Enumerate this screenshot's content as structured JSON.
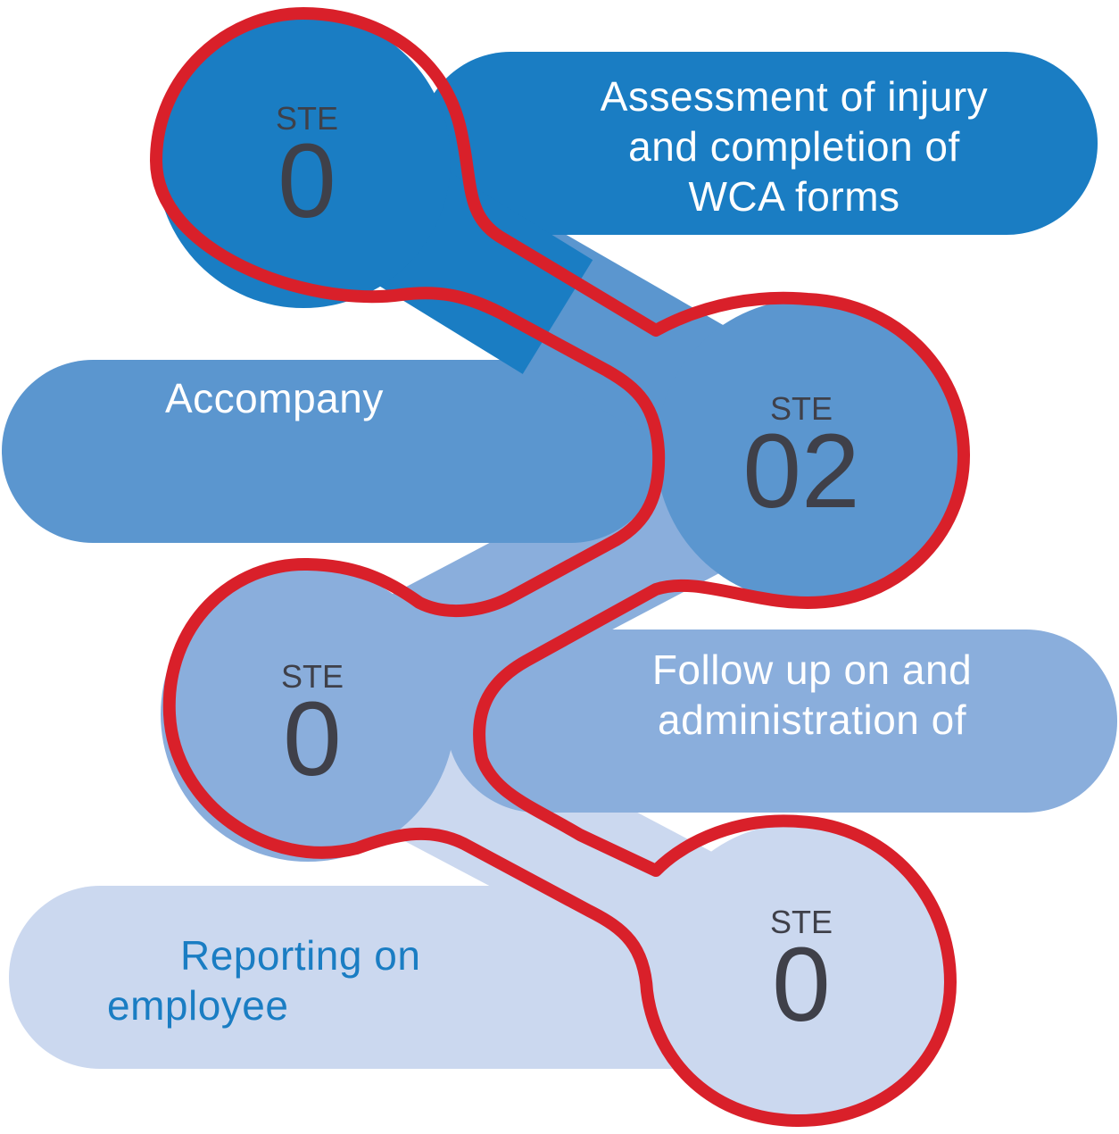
{
  "colors": {
    "step1": "#1a7dc3",
    "step2": "#5b96cf",
    "step3": "#8aaedc",
    "step4": "#cbd8ef",
    "outline": "#d9202a",
    "number_text": "#3f4049",
    "light_text": "#ffffff",
    "dark_text": "#1a7dc3"
  },
  "steps": [
    {
      "step_word": "STE",
      "step_number": "0",
      "description_lines": [
        "Assessment of injury",
        "and completion of",
        "WCA  forms"
      ]
    },
    {
      "step_word": "STE",
      "step_number": "02",
      "description_lines": [
        "Accompany"
      ]
    },
    {
      "step_word": "STE",
      "step_number": "0",
      "description_lines": [
        "Follow up on and",
        "administration of"
      ]
    },
    {
      "step_word": "STE",
      "step_number": "0",
      "description_lines": [
        "Reporting on",
        "employee"
      ]
    }
  ]
}
